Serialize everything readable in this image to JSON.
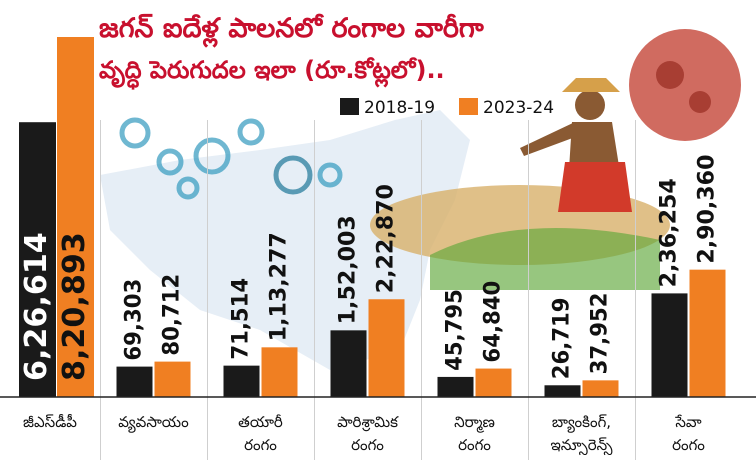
{
  "chart_data": {
    "type": "bar",
    "title_line1": "జగన్ ఐదేళ్ల పాలనలో రంగాల వారీగా",
    "title_line2": "వృద్ధి పెరుగుదల ఇలా (రూ.కోట్లలో)..",
    "categories": [
      [
        "జీఎస్‌డీపీ"
      ],
      [
        "వ్యవసాయం"
      ],
      [
        "తయారీ",
        "రంగం"
      ],
      [
        "పారిశ్రామిక",
        "రంగం"
      ],
      [
        "నిర్మాణ",
        "రంగం"
      ],
      [
        "బ్యాంకింగ్,",
        "ఇన్సూరెన్స్"
      ],
      [
        "సేవా",
        "రంగం"
      ]
    ],
    "series": [
      {
        "name": "2018-19",
        "color": "#1a1a1a",
        "values": [
          626614,
          69303,
          71514,
          152003,
          45795,
          26719,
          236254
        ],
        "labels": [
          "6,26,614",
          "69,303",
          "71,514",
          "1,52,003",
          "45,795",
          "26,719",
          "2,36,254"
        ]
      },
      {
        "name": "2023-24",
        "color": "#f07f22",
        "values": [
          820893,
          80712,
          113277,
          222870,
          64840,
          37952,
          290360
        ],
        "labels": [
          "8,20,893",
          "80,712",
          "1,13,277",
          "2,22,870",
          "64,840",
          "37,952",
          "2,90,360"
        ]
      }
    ],
    "grid": "vertical separators",
    "legend": "top-center"
  }
}
